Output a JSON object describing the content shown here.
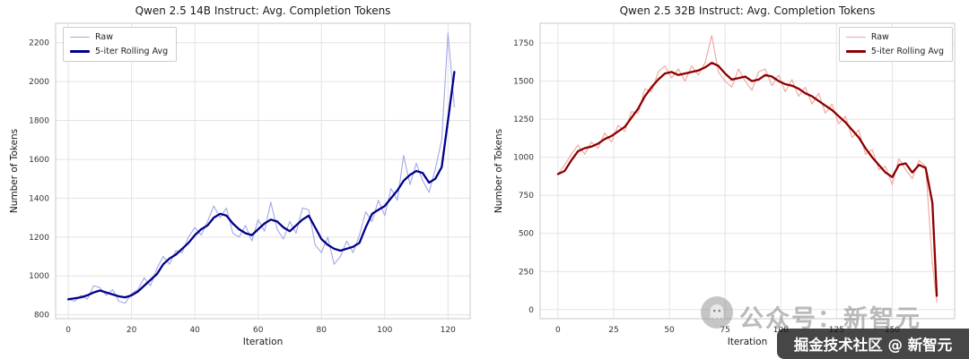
{
  "watermark": {
    "brand_text": "公众号：新智元",
    "badge_text": "掘金技术社区 @ 新智元"
  },
  "chart_data": [
    {
      "type": "line",
      "title": "Qwen 2.5 14B Instruct: Avg. Completion Tokens",
      "xlabel": "Iteration",
      "ylabel": "Number of Tokens",
      "xlim": [
        -4,
        127
      ],
      "ylim": [
        780,
        2300
      ],
      "xticks": [
        0,
        20,
        40,
        60,
        80,
        100,
        120
      ],
      "yticks": [
        800,
        1000,
        1200,
        1400,
        1600,
        1800,
        2000,
        2200
      ],
      "grid": true,
      "legend_position": "upper-left",
      "x": [
        0,
        2,
        4,
        6,
        8,
        10,
        12,
        14,
        16,
        18,
        20,
        22,
        24,
        26,
        28,
        30,
        32,
        34,
        36,
        38,
        40,
        42,
        44,
        46,
        48,
        50,
        52,
        54,
        56,
        58,
        60,
        62,
        64,
        66,
        68,
        70,
        72,
        74,
        76,
        78,
        80,
        82,
        84,
        86,
        88,
        90,
        92,
        94,
        96,
        98,
        100,
        102,
        104,
        106,
        108,
        110,
        112,
        114,
        116,
        118,
        120,
        122
      ],
      "series": [
        {
          "name": "Raw",
          "color": "#a3a8e6",
          "width": 1.1,
          "values": [
            880,
            870,
            900,
            880,
            950,
            940,
            900,
            930,
            870,
            860,
            910,
            930,
            990,
            950,
            1040,
            1100,
            1060,
            1130,
            1120,
            1200,
            1250,
            1210,
            1280,
            1360,
            1300,
            1350,
            1220,
            1200,
            1260,
            1180,
            1290,
            1230,
            1380,
            1240,
            1190,
            1280,
            1220,
            1350,
            1340,
            1160,
            1120,
            1200,
            1060,
            1100,
            1180,
            1120,
            1210,
            1330,
            1280,
            1390,
            1310,
            1450,
            1390,
            1620,
            1470,
            1580,
            1490,
            1430,
            1550,
            1700,
            2250,
            1870
          ]
        },
        {
          "name": "5-iter Rolling Avg",
          "color": "#00008b",
          "width": 2.3,
          "values": [
            880,
            885,
            890,
            900,
            915,
            925,
            915,
            905,
            895,
            890,
            900,
            920,
            950,
            980,
            1010,
            1060,
            1090,
            1110,
            1140,
            1170,
            1210,
            1240,
            1260,
            1300,
            1320,
            1310,
            1270,
            1240,
            1220,
            1210,
            1240,
            1270,
            1290,
            1280,
            1250,
            1230,
            1260,
            1290,
            1310,
            1250,
            1190,
            1160,
            1140,
            1130,
            1140,
            1150,
            1170,
            1250,
            1320,
            1340,
            1360,
            1400,
            1440,
            1490,
            1520,
            1540,
            1530,
            1480,
            1500,
            1560,
            1800,
            2050
          ]
        }
      ]
    },
    {
      "type": "line",
      "title": "Qwen 2.5 32B Instruct: Avg. Completion Tokens",
      "xlabel": "Iteration",
      "ylabel": "Number of Tokens",
      "xlim": [
        -8,
        178
      ],
      "ylim": [
        -60,
        1880
      ],
      "xticks": [
        0,
        25,
        50,
        75,
        100,
        125,
        150
      ],
      "yticks": [
        0,
        250,
        500,
        750,
        1000,
        1250,
        1500,
        1750
      ],
      "grid": true,
      "legend_position": "upper-right",
      "x": [
        0,
        3,
        6,
        9,
        12,
        15,
        18,
        21,
        24,
        27,
        30,
        33,
        36,
        39,
        42,
        45,
        48,
        51,
        54,
        57,
        60,
        63,
        66,
        69,
        72,
        75,
        78,
        81,
        84,
        87,
        90,
        93,
        96,
        99,
        102,
        105,
        108,
        111,
        114,
        117,
        120,
        123,
        126,
        129,
        132,
        135,
        138,
        141,
        144,
        147,
        150,
        153,
        156,
        159,
        162,
        165,
        168,
        170
      ],
      "series": [
        {
          "name": "Raw",
          "color": "#f3a29b",
          "width": 1.1,
          "values": [
            890,
            950,
            1020,
            1080,
            1020,
            1100,
            1060,
            1160,
            1100,
            1210,
            1170,
            1300,
            1290,
            1450,
            1430,
            1560,
            1600,
            1520,
            1580,
            1500,
            1600,
            1540,
            1620,
            1800,
            1560,
            1500,
            1460,
            1580,
            1500,
            1440,
            1560,
            1580,
            1470,
            1540,
            1430,
            1510,
            1400,
            1460,
            1350,
            1420,
            1290,
            1350,
            1220,
            1270,
            1130,
            1180,
            1020,
            1050,
            920,
            940,
            820,
            990,
            920,
            860,
            980,
            940,
            300,
            50
          ]
        },
        {
          "name": "5-iter Rolling Avg",
          "color": "#8b0000",
          "width": 2.3,
          "values": [
            890,
            910,
            980,
            1040,
            1060,
            1070,
            1090,
            1120,
            1140,
            1170,
            1200,
            1260,
            1320,
            1400,
            1460,
            1510,
            1550,
            1560,
            1540,
            1550,
            1560,
            1570,
            1590,
            1620,
            1600,
            1550,
            1510,
            1520,
            1530,
            1500,
            1510,
            1540,
            1530,
            1500,
            1480,
            1470,
            1450,
            1420,
            1400,
            1370,
            1340,
            1310,
            1270,
            1230,
            1180,
            1130,
            1060,
            1000,
            950,
            900,
            870,
            950,
            960,
            900,
            950,
            930,
            700,
            90
          ]
        }
      ]
    }
  ]
}
